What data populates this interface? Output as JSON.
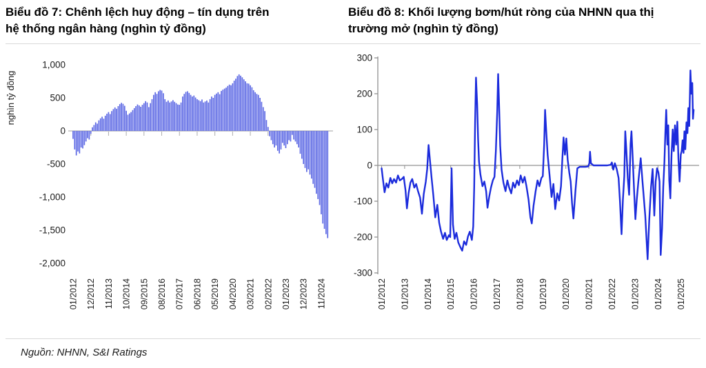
{
  "page": {
    "source_note": "Nguồn: NHNN, S&I Ratings"
  },
  "titles": {
    "left_line1": "Biểu đồ 7: Chênh lệch huy động – tín dụng trên",
    "left_line2": "hệ thống ngân hàng (nghìn tỷ đồng)",
    "right_line1": "Biểu đồ 8: Khối lượng bơm/hút ròng của NHNN qua thị",
    "right_line2": "trường mở (nghìn tỷ đồng)"
  },
  "chart_data": [
    {
      "id": "deposit-credit-gap",
      "type": "bar",
      "title": "Biểu đồ 7: Chênh lệch huy động – tín dụng trên hệ thống ngân hàng (nghìn tỷ đồng)",
      "ylabel": "nghìn tỷ đồng",
      "ylim": [
        -2000,
        1000
      ],
      "ytick_values": [
        1000,
        500,
        0,
        -500,
        -1000,
        -1500,
        -2000
      ],
      "ytick_labels": [
        "1,000",
        "500",
        "0",
        "-500",
        "-1,000",
        "-1,500",
        "-2,000"
      ],
      "x_start": "01/2012",
      "x_end": "03/2025",
      "xtick_month_interval": 11,
      "xtick_labels": [
        "01/2012",
        "12/2012",
        "11/2013",
        "10/2014",
        "09/2015",
        "08/2016",
        "07/2017",
        "06/2018",
        "05/2019",
        "04/2020",
        "03/2021",
        "02/2022",
        "01/2023",
        "12/2023",
        "11/2024"
      ],
      "bar_color": "#5c68e4",
      "grid": false,
      "values": [
        -120,
        -280,
        -370,
        -310,
        -340,
        -250,
        -265,
        -215,
        -160,
        -110,
        -130,
        -45,
        55,
        90,
        130,
        110,
        160,
        190,
        215,
        185,
        230,
        260,
        285,
        255,
        300,
        330,
        355,
        335,
        375,
        405,
        425,
        410,
        380,
        305,
        245,
        265,
        285,
        315,
        345,
        375,
        400,
        385,
        365,
        395,
        420,
        450,
        430,
        360,
        420,
        480,
        545,
        585,
        560,
        600,
        620,
        610,
        570,
        480,
        440,
        460,
        430,
        445,
        465,
        440,
        420,
        400,
        395,
        430,
        520,
        560,
        590,
        600,
        575,
        545,
        520,
        535,
        505,
        480,
        465,
        450,
        475,
        430,
        445,
        460,
        430,
        480,
        520,
        500,
        545,
        565,
        585,
        555,
        605,
        625,
        640,
        655,
        680,
        700,
        690,
        720,
        760,
        790,
        830,
        855,
        835,
        810,
        780,
        750,
        720,
        715,
        690,
        660,
        615,
        585,
        560,
        545,
        500,
        440,
        360,
        300,
        165,
        60,
        -80,
        -140,
        -200,
        -250,
        -220,
        -300,
        -340,
        -280,
        -180,
        -220,
        -260,
        -200,
        -140,
        -160,
        -60,
        -130,
        -160,
        -200,
        -250,
        -345,
        -420,
        -500,
        -560,
        -620,
        -580,
        -660,
        -720,
        -800,
        -860,
        -950,
        -1030,
        -1120,
        -1260,
        -1400,
        -1480,
        -1560,
        -1620
      ]
    },
    {
      "id": "omo-net-volume",
      "type": "line",
      "title": "Biểu đồ 8: Khối lượng bơm/hút ròng của NHNN qua thị trường mở (nghìn tỷ đồng)",
      "ylim": [
        -300,
        300
      ],
      "ytick_values": [
        300,
        200,
        100,
        0,
        -100,
        -200,
        -300
      ],
      "ytick_labels": [
        "300",
        "200",
        "100",
        "0",
        "-100",
        "-200",
        "-300"
      ],
      "xtick_year_interval": 1,
      "xtick_labels": [
        "01/2012",
        "01/2013",
        "01/2014",
        "01/2015",
        "01/2016",
        "01/2017",
        "01/2018",
        "01/2019",
        "01/2020",
        "01/2021",
        "01/2022",
        "01/2023",
        "01/2024",
        "01/2025"
      ],
      "line_color": "#1b2bdc",
      "grid": false,
      "points": [
        [
          0.0,
          -8
        ],
        [
          0.06,
          -40
        ],
        [
          0.13,
          -75
        ],
        [
          0.21,
          -50
        ],
        [
          0.29,
          -62
        ],
        [
          0.38,
          -35
        ],
        [
          0.46,
          -50
        ],
        [
          0.54,
          -38
        ],
        [
          0.63,
          -48
        ],
        [
          0.71,
          -28
        ],
        [
          0.79,
          -42
        ],
        [
          0.88,
          -38
        ],
        [
          0.96,
          -32
        ],
        [
          1.04,
          -70
        ],
        [
          1.1,
          -120
        ],
        [
          1.17,
          -78
        ],
        [
          1.25,
          -48
        ],
        [
          1.33,
          -38
        ],
        [
          1.42,
          -62
        ],
        [
          1.5,
          -52
        ],
        [
          1.58,
          -72
        ],
        [
          1.67,
          -90
        ],
        [
          1.75,
          -135
        ],
        [
          1.83,
          -80
        ],
        [
          1.92,
          -45
        ],
        [
          1.98,
          -10
        ],
        [
          2.04,
          57
        ],
        [
          2.1,
          15
        ],
        [
          2.17,
          -35
        ],
        [
          2.25,
          -85
        ],
        [
          2.33,
          -145
        ],
        [
          2.42,
          -110
        ],
        [
          2.5,
          -160
        ],
        [
          2.58,
          -185
        ],
        [
          2.67,
          -205
        ],
        [
          2.75,
          -188
        ],
        [
          2.83,
          -208
        ],
        [
          2.92,
          -195
        ],
        [
          2.98,
          -200
        ],
        [
          3.04,
          -8
        ],
        [
          3.1,
          -165
        ],
        [
          3.17,
          -205
        ],
        [
          3.25,
          -188
        ],
        [
          3.33,
          -215
        ],
        [
          3.42,
          -228
        ],
        [
          3.5,
          -238
        ],
        [
          3.58,
          -212
        ],
        [
          3.67,
          -222
        ],
        [
          3.75,
          -198
        ],
        [
          3.83,
          -185
        ],
        [
          3.92,
          -208
        ],
        [
          3.98,
          -170
        ],
        [
          4.02,
          -60
        ],
        [
          4.06,
          120
        ],
        [
          4.1,
          245
        ],
        [
          4.15,
          170
        ],
        [
          4.19,
          75
        ],
        [
          4.23,
          10
        ],
        [
          4.29,
          -25
        ],
        [
          4.38,
          -58
        ],
        [
          4.46,
          -45
        ],
        [
          4.54,
          -72
        ],
        [
          4.6,
          -118
        ],
        [
          4.67,
          -88
        ],
        [
          4.75,
          -62
        ],
        [
          4.83,
          -42
        ],
        [
          4.9,
          -32
        ],
        [
          4.96,
          40
        ],
        [
          5.02,
          150
        ],
        [
          5.06,
          255
        ],
        [
          5.1,
          175
        ],
        [
          5.15,
          55
        ],
        [
          5.21,
          -12
        ],
        [
          5.29,
          -48
        ],
        [
          5.38,
          -72
        ],
        [
          5.46,
          -42
        ],
        [
          5.54,
          -62
        ],
        [
          5.63,
          -78
        ],
        [
          5.71,
          -48
        ],
        [
          5.79,
          -62
        ],
        [
          5.88,
          -42
        ],
        [
          5.96,
          -55
        ],
        [
          6.04,
          -28
        ],
        [
          6.13,
          -48
        ],
        [
          6.21,
          -32
        ],
        [
          6.29,
          -58
        ],
        [
          6.38,
          -95
        ],
        [
          6.46,
          -145
        ],
        [
          6.52,
          -162
        ],
        [
          6.6,
          -112
        ],
        [
          6.69,
          -72
        ],
        [
          6.77,
          -42
        ],
        [
          6.85,
          -58
        ],
        [
          6.94,
          -35
        ],
        [
          7.0,
          -30
        ],
        [
          7.06,
          60
        ],
        [
          7.1,
          155
        ],
        [
          7.15,
          95
        ],
        [
          7.21,
          30
        ],
        [
          7.29,
          -25
        ],
        [
          7.38,
          -88
        ],
        [
          7.46,
          -52
        ],
        [
          7.54,
          -122
        ],
        [
          7.63,
          -78
        ],
        [
          7.71,
          -98
        ],
        [
          7.79,
          -58
        ],
        [
          7.85,
          20
        ],
        [
          7.9,
          78
        ],
        [
          7.96,
          30
        ],
        [
          8.02,
          75
        ],
        [
          8.08,
          15
        ],
        [
          8.15,
          -20
        ],
        [
          8.21,
          -45
        ],
        [
          8.27,
          -105
        ],
        [
          8.33,
          -148
        ],
        [
          8.42,
          -70
        ],
        [
          8.5,
          -8
        ],
        [
          8.6,
          -4
        ],
        [
          8.72,
          -4
        ],
        [
          8.85,
          -4
        ],
        [
          8.97,
          -3
        ],
        [
          9.02,
          6
        ],
        [
          9.05,
          38
        ],
        [
          9.09,
          6
        ],
        [
          9.2,
          0
        ],
        [
          9.4,
          0
        ],
        [
          9.6,
          0
        ],
        [
          9.8,
          0
        ],
        [
          9.95,
          2
        ],
        [
          10.0,
          8
        ],
        [
          10.06,
          -12
        ],
        [
          10.13,
          6
        ],
        [
          10.21,
          -10
        ],
        [
          10.29,
          -35
        ],
        [
          10.35,
          -100
        ],
        [
          10.42,
          -192
        ],
        [
          10.48,
          -95
        ],
        [
          10.54,
          -30
        ],
        [
          10.58,
          95
        ],
        [
          10.63,
          42
        ],
        [
          10.69,
          -35
        ],
        [
          10.75,
          -82
        ],
        [
          10.81,
          60
        ],
        [
          10.85,
          95
        ],
        [
          10.9,
          25
        ],
        [
          10.96,
          -65
        ],
        [
          11.02,
          -150
        ],
        [
          11.08,
          -95
        ],
        [
          11.15,
          -45
        ],
        [
          11.25,
          20
        ],
        [
          11.33,
          -45
        ],
        [
          11.45,
          -140
        ],
        [
          11.55,
          -262
        ],
        [
          11.62,
          -155
        ],
        [
          11.7,
          -60
        ],
        [
          11.77,
          -10
        ],
        [
          11.84,
          -140
        ],
        [
          11.9,
          -45
        ],
        [
          11.96,
          -8
        ],
        [
          12.02,
          -20
        ],
        [
          12.07,
          -45
        ],
        [
          12.12,
          -250
        ],
        [
          12.18,
          -175
        ],
        [
          12.23,
          -60
        ],
        [
          12.28,
          10
        ],
        [
          12.32,
          90
        ],
        [
          12.36,
          155
        ],
        [
          12.41,
          58
        ],
        [
          12.45,
          112
        ],
        [
          12.49,
          -42
        ],
        [
          12.54,
          -92
        ],
        [
          12.59,
          28
        ],
        [
          12.64,
          100
        ],
        [
          12.69,
          40
        ],
        [
          12.74,
          112
        ],
        [
          12.79,
          58
        ],
        [
          12.84,
          122
        ],
        [
          12.89,
          18
        ],
        [
          12.94,
          -45
        ],
        [
          12.99,
          30
        ],
        [
          13.03,
          40
        ],
        [
          13.07,
          70
        ],
        [
          13.11,
          35
        ],
        [
          13.15,
          95
        ],
        [
          13.19,
          45
        ],
        [
          13.24,
          120
        ],
        [
          13.28,
          90
        ],
        [
          13.32,
          160
        ],
        [
          13.36,
          110
        ],
        [
          13.41,
          265
        ],
        [
          13.45,
          200
        ],
        [
          13.49,
          230
        ],
        [
          13.52,
          130
        ],
        [
          13.55,
          155
        ]
      ]
    }
  ]
}
